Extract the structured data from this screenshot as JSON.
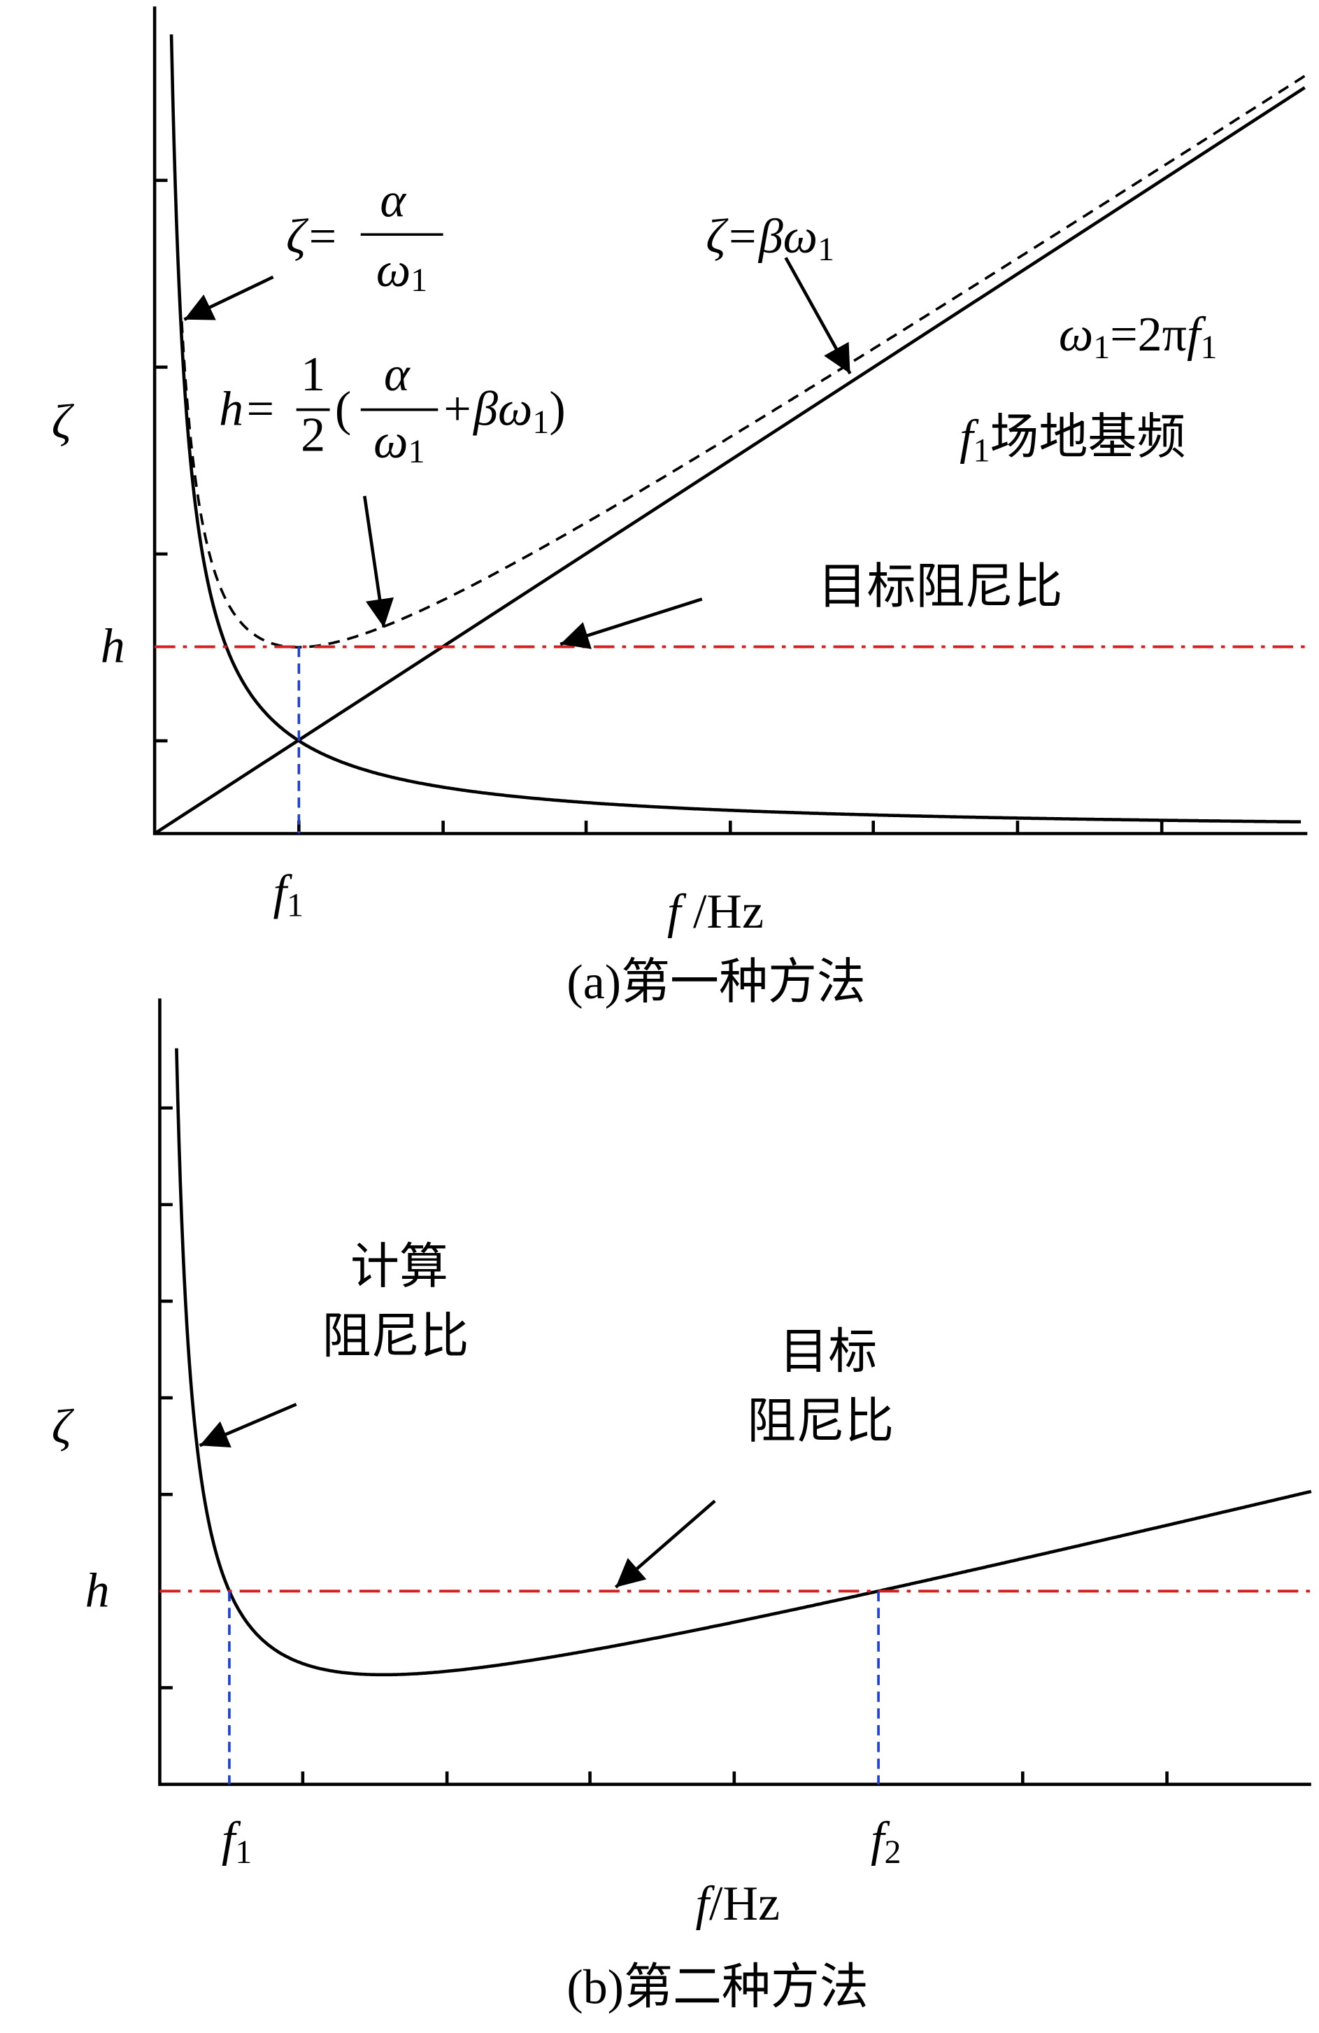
{
  "panel_a": {
    "y_label": "ζ",
    "h_label": "h",
    "x_tick": {
      "var": "f",
      "sub": "1"
    },
    "x_label": {
      "var": "f",
      "unit": " /Hz"
    },
    "caption": "(a)第一种方法",
    "eq_alpha": {
      "lhs": "ζ=",
      "num": "α",
      "den": "ω",
      "den_sub": "1"
    },
    "eq_beta": {
      "lhs": "ζ=βω",
      "sub": "1"
    },
    "eq_omega": {
      "a": "ω",
      "a_sub": "1",
      "b": "=2π",
      "c": "f",
      "c_sub": "1"
    },
    "eq_h": {
      "lhs": "h=",
      "half_num": "1",
      "half_den": "2",
      "open": "(",
      "num": "α",
      "den": "ω",
      "den_sub": "1",
      "rest": "+βω",
      "rest_sub": "1",
      "close": ")"
    },
    "f1_note": {
      "var": "f",
      "sub": "1",
      "text": "场地基频"
    },
    "target": "目标阻尼比"
  },
  "panel_b": {
    "y_label": "ζ",
    "h_label": "h",
    "x_ticks": [
      {
        "var": "f",
        "sub": "1"
      },
      {
        "var": "f",
        "sub": "2"
      }
    ],
    "x_label": {
      "var": "f",
      "unit": "/Hz"
    },
    "caption": "(b)第二种方法",
    "computed": [
      "计算",
      "阻尼比"
    ],
    "target": [
      "目标",
      "阻尼比"
    ]
  }
}
